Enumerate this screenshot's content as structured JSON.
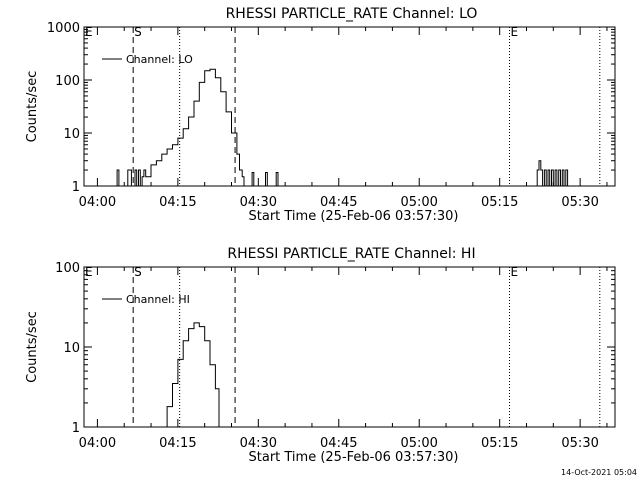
{
  "chart_data": [
    {
      "type": "line",
      "title": "RHESSI PARTICLE_RATE Channel: LO",
      "xlabel": "Start Time (25-Feb-06 03:57:30)",
      "ylabel": "Counts/sec",
      "y_scale": "log",
      "ylim": [
        1,
        1000
      ],
      "y_ticks": [
        1,
        10,
        100,
        1000
      ],
      "y_tick_labels": [
        "1",
        "10",
        "100",
        "1000"
      ],
      "xlim": [
        "03:57:30",
        "05:36:30"
      ],
      "x_ticks": [
        "04:00",
        "04:15",
        "04:30",
        "04:45",
        "05:00",
        "05:15",
        "05:30"
      ],
      "legend": {
        "entries": [
          "Channel: LO"
        ],
        "position": "top-left"
      },
      "markers": [
        {
          "label": "E",
          "time": "03:57:30",
          "style": "dotted"
        },
        {
          "label": "S",
          "time": "04:06:40",
          "style": "dashed"
        },
        {
          "label": "",
          "time": "04:15:20",
          "style": "dotted"
        },
        {
          "label": "",
          "time": "04:25:40",
          "style": "dashed"
        },
        {
          "label": "E",
          "time": "05:16:50",
          "style": "dotted"
        },
        {
          "label": "",
          "time": "05:33:40",
          "style": "dotted"
        }
      ],
      "series": [
        {
          "name": "Channel: LO",
          "x": [
            "04:03:10",
            "04:03:30",
            "04:03:40",
            "04:04:00",
            "04:04:20",
            "04:05:30",
            "04:05:40",
            "04:06:00",
            "04:06:20",
            "04:07:00",
            "04:07:20",
            "04:07:40",
            "04:08:00",
            "04:08:20",
            "04:08:40",
            "04:09:00",
            "04:10:00",
            "04:11:00",
            "04:12:00",
            "04:13:00",
            "04:14:00",
            "04:15:00",
            "04:16:00",
            "04:17:00",
            "04:18:00",
            "04:19:00",
            "04:20:00",
            "04:21:00",
            "04:22:00",
            "04:23:00",
            "04:24:00",
            "04:25:00",
            "04:26:00",
            "04:26:30",
            "04:27:00",
            "04:27:20",
            "04:28:30",
            "04:28:50",
            "04:29:10",
            "04:31:00",
            "04:31:20",
            "04:31:40",
            "04:33:00",
            "04:33:20",
            "04:33:40",
            "05:21:30",
            "05:22:00",
            "05:22:20",
            "05:22:40",
            "05:23:00",
            "05:23:20",
            "05:23:40",
            "05:24:00",
            "05:24:20",
            "05:24:40",
            "05:25:00",
            "05:25:20",
            "05:25:40",
            "05:26:00",
            "05:26:20",
            "05:26:40",
            "05:27:00",
            "05:27:20",
            "05:27:40"
          ],
          "y": [
            1,
            1,
            2,
            1,
            1,
            1,
            2,
            2,
            1,
            2,
            1,
            2,
            1,
            1.5,
            2,
            1.5,
            2.5,
            3,
            4,
            5,
            6,
            8,
            12,
            20,
            40,
            90,
            150,
            160,
            110,
            60,
            25,
            10,
            4,
            2,
            1.5,
            1,
            1,
            1.8,
            1,
            1,
            1.8,
            1,
            1,
            1.8,
            1,
            1,
            2,
            3,
            2,
            1,
            2,
            1,
            2,
            1,
            2,
            1,
            2,
            1,
            2,
            1,
            2,
            1,
            2,
            1
          ]
        }
      ]
    },
    {
      "type": "line",
      "title": "RHESSI PARTICLE_RATE Channel: HI",
      "xlabel": "Start Time (25-Feb-06 03:57:30)",
      "ylabel": "Counts/sec",
      "y_scale": "log",
      "ylim": [
        1,
        100
      ],
      "y_ticks": [
        1,
        10,
        100
      ],
      "y_tick_labels": [
        "1",
        "10",
        "100"
      ],
      "xlim": [
        "03:57:30",
        "05:36:30"
      ],
      "x_ticks": [
        "04:00",
        "04:15",
        "04:30",
        "04:45",
        "05:00",
        "05:15",
        "05:30"
      ],
      "legend": {
        "entries": [
          "Channel: HI"
        ],
        "position": "top-left"
      },
      "markers": [
        {
          "label": "E",
          "time": "03:57:30",
          "style": "dotted"
        },
        {
          "label": "S",
          "time": "04:06:40",
          "style": "dashed"
        },
        {
          "label": "",
          "time": "04:15:20",
          "style": "dotted"
        },
        {
          "label": "",
          "time": "04:25:40",
          "style": "dashed"
        },
        {
          "label": "E",
          "time": "05:16:50",
          "style": "dotted"
        },
        {
          "label": "",
          "time": "05:33:40",
          "style": "dotted"
        }
      ],
      "series": [
        {
          "name": "Channel: HI",
          "x": [
            "04:12:00",
            "04:13:00",
            "04:14:00",
            "04:15:00",
            "04:16:00",
            "04:17:00",
            "04:18:00",
            "04:19:00",
            "04:20:00",
            "04:21:00",
            "04:22:00",
            "04:22:40"
          ],
          "y": [
            1,
            1.8,
            3.5,
            7,
            12,
            17,
            20,
            18,
            12,
            6,
            3,
            1
          ]
        }
      ]
    }
  ],
  "footer": {
    "timestamp": "14-Oct-2021 05:04"
  }
}
